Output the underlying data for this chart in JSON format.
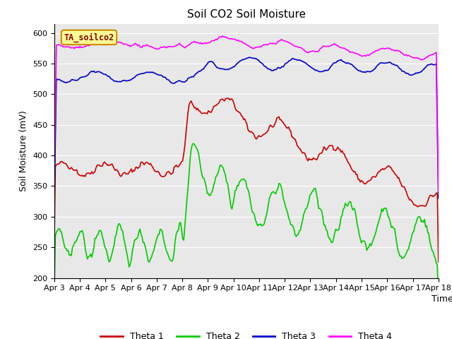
{
  "title": "Soil CO2 Soil Moisture",
  "ylabel": "Soil Moisture (mV)",
  "xlabel": "Time",
  "label_text": "TA_soilco2",
  "ylim": [
    200,
    615
  ],
  "yticks": [
    200,
    250,
    300,
    350,
    400,
    450,
    500,
    550,
    600
  ],
  "x_labels": [
    "Apr 3",
    "Apr 4",
    "Apr 5",
    "Apr 6",
    "Apr 7",
    "Apr 8",
    "Apr 9",
    "Apr 10",
    "Apr 11",
    "Apr 12",
    "Apr 13",
    "Apr 14",
    "Apr 15",
    "Apr 16",
    "Apr 17",
    "Apr 18"
  ],
  "colors": {
    "theta1": "#cc0000",
    "theta2": "#00cc00",
    "theta3": "#0000cc",
    "theta4": "#ff00ff",
    "background": "#e8e8e8",
    "fig_background": "#ffffff",
    "label_bg": "#ffff99",
    "label_border": "#cc8800"
  },
  "line_width": 1.2,
  "legend_entries": [
    "Theta 1",
    "Theta 2",
    "Theta 3",
    "Theta 4"
  ]
}
